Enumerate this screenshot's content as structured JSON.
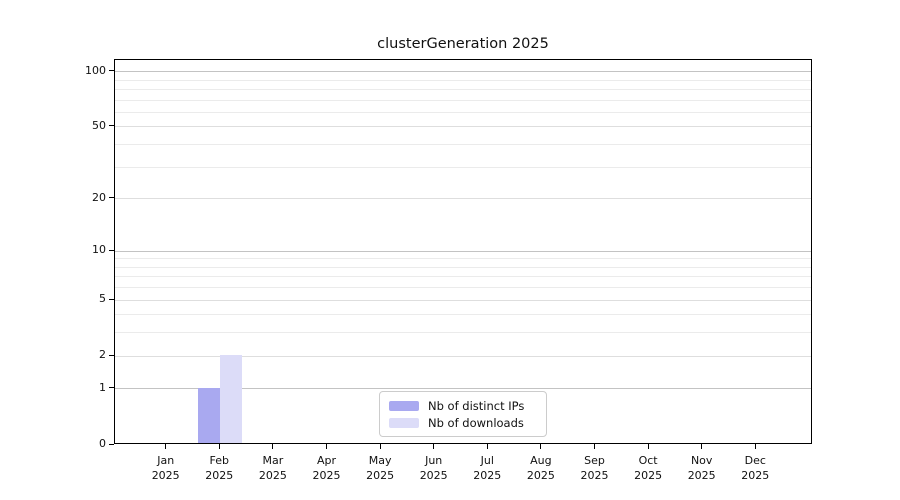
{
  "title": "clusterGeneration 2025",
  "chart_data": {
    "type": "bar",
    "title": "clusterGeneration 2025",
    "categories": [
      "Jan",
      "Feb",
      "Mar",
      "Apr",
      "May",
      "Jun",
      "Jul",
      "Aug",
      "Sep",
      "Oct",
      "Nov",
      "Dec"
    ],
    "category_year": "2025",
    "series": [
      {
        "name": "Nb of distinct IPs",
        "color": "#a9a9f0",
        "values": [
          0,
          1,
          0,
          0,
          0,
          0,
          0,
          0,
          0,
          0,
          0,
          0
        ]
      },
      {
        "name": "Nb of downloads",
        "color": "#dcdcf8",
        "values": [
          0,
          2,
          0,
          0,
          0,
          0,
          0,
          0,
          0,
          0,
          0,
          0
        ]
      }
    ],
    "xlabel": "",
    "ylabel": "",
    "y_scale": "log1p",
    "y_ticks": [
      0,
      1,
      2,
      5,
      10,
      20,
      50,
      100
    ],
    "y_minor_ticks": [
      3,
      4,
      6,
      7,
      8,
      9,
      30,
      40,
      60,
      70,
      80,
      90
    ],
    "y_emphasized_gridlines": [
      1,
      10,
      100
    ],
    "ylim": [
      0,
      115.6
    ],
    "grid": true,
    "legend_position": "lower center",
    "legend_labels": [
      "Nb of distinct IPs",
      "Nb of downloads"
    ],
    "colors": {
      "distinct_ips": "#a9a9f0",
      "downloads": "#dcdcf8",
      "grid_major": "#c3c3c3",
      "grid_minor": "#ebebeb"
    }
  }
}
